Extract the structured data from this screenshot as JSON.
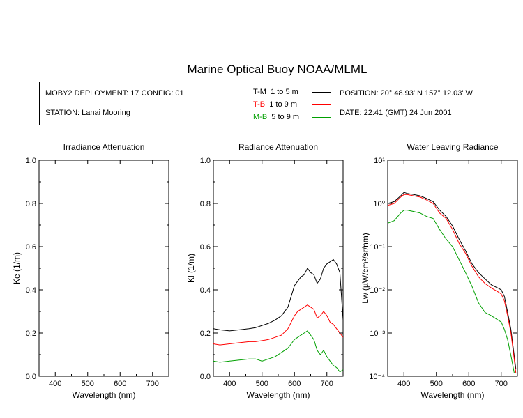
{
  "title": "Marine Optical Buoy NOAA/MLML",
  "info": {
    "deployment": "MOBY2 DEPLOYMENT: 17 CONFIG: 01",
    "station": "STATION: Lanai Mooring",
    "position": "POSITION: 20° 48.93' N   157° 12.03' W",
    "date": "DATE: 22:41 (GMT) 24 Jun 2001"
  },
  "legend": [
    {
      "code": "T-M",
      "range": "1 to 5  m",
      "color": "#000000"
    },
    {
      "code": "T-B",
      "range": "1 to 9  m",
      "color": "#ff0000"
    },
    {
      "code": "M-B",
      "range": "5 to 9  m",
      "color": "#00a000"
    }
  ],
  "chart_data": [
    {
      "type": "line",
      "title": "Irradiance Attenuation",
      "xlabel": "Wavelength (nm)",
      "ylabel": "Ke  (1/m)",
      "xlim": [
        350,
        750
      ],
      "ylim": [
        0,
        1
      ],
      "xticks": [
        400,
        500,
        600,
        700
      ],
      "yticks": [
        0.0,
        0.2,
        0.4,
        0.6,
        0.8,
        1.0
      ],
      "ytick_labels": [
        "0.0",
        "0.2",
        "0.4",
        "0.6",
        "0.8",
        "1.0"
      ],
      "series": []
    },
    {
      "type": "line",
      "title": "Radiance Attenuation",
      "xlabel": "Wavelength (nm)",
      "ylabel": "Kl  (1/m)",
      "xlim": [
        350,
        750
      ],
      "ylim": [
        0,
        1
      ],
      "xticks": [
        400,
        500,
        600,
        700
      ],
      "yticks": [
        0.0,
        0.2,
        0.4,
        0.6,
        0.8,
        1.0
      ],
      "ytick_labels": [
        "0.0",
        "0.2",
        "0.4",
        "0.6",
        "0.8",
        "1.0"
      ],
      "series": [
        {
          "color": "#000000",
          "x": [
            350,
            370,
            400,
            430,
            460,
            480,
            500,
            520,
            540,
            560,
            580,
            590,
            600,
            610,
            620,
            630,
            640,
            650,
            660,
            670,
            680,
            690,
            700,
            710,
            720,
            730,
            740,
            750
          ],
          "y": [
            0.22,
            0.215,
            0.21,
            0.215,
            0.22,
            0.225,
            0.235,
            0.245,
            0.26,
            0.28,
            0.32,
            0.37,
            0.42,
            0.44,
            0.46,
            0.47,
            0.5,
            0.48,
            0.47,
            0.43,
            0.45,
            0.5,
            0.52,
            0.53,
            0.54,
            0.52,
            0.48,
            0.26
          ]
        },
        {
          "color": "#ff0000",
          "x": [
            350,
            370,
            400,
            430,
            460,
            480,
            500,
            520,
            540,
            560,
            580,
            590,
            600,
            610,
            620,
            630,
            640,
            650,
            660,
            670,
            680,
            690,
            700,
            710,
            720,
            730,
            740,
            750
          ],
          "y": [
            0.15,
            0.145,
            0.15,
            0.155,
            0.16,
            0.16,
            0.165,
            0.17,
            0.18,
            0.19,
            0.22,
            0.25,
            0.28,
            0.3,
            0.31,
            0.32,
            0.33,
            0.32,
            0.31,
            0.27,
            0.28,
            0.3,
            0.28,
            0.25,
            0.24,
            0.22,
            0.2,
            0.18
          ]
        },
        {
          "color": "#00a000",
          "x": [
            350,
            370,
            400,
            430,
            460,
            480,
            500,
            520,
            540,
            560,
            580,
            590,
            600,
            610,
            620,
            630,
            640,
            650,
            660,
            670,
            680,
            690,
            700,
            710,
            720,
            730,
            740,
            750
          ],
          "y": [
            0.07,
            0.065,
            0.07,
            0.075,
            0.08,
            0.08,
            0.07,
            0.08,
            0.09,
            0.11,
            0.13,
            0.15,
            0.17,
            0.18,
            0.19,
            0.2,
            0.21,
            0.19,
            0.17,
            0.12,
            0.1,
            0.12,
            0.09,
            0.07,
            0.05,
            0.04,
            0.02,
            0.03
          ]
        }
      ]
    },
    {
      "type": "line",
      "title": "Water Leaving Radiance",
      "xlabel": "Wavelength (nm)",
      "ylabel": "Lw  (µW/cm²/sr/nm)",
      "yscale": "log",
      "xlim": [
        350,
        750
      ],
      "ylim": [
        0.0001,
        10
      ],
      "xticks": [
        400,
        500,
        600,
        700
      ],
      "yticks": [
        0.0001,
        0.001,
        0.01,
        0.1,
        1,
        10
      ],
      "ytick_labels": [
        "10⁻⁴",
        "10⁻³",
        "10⁻²",
        "10⁻¹",
        "10⁰",
        "10¹"
      ],
      "series": [
        {
          "color": "#000000",
          "x": [
            350,
            370,
            390,
            400,
            410,
            430,
            450,
            470,
            490,
            510,
            530,
            550,
            570,
            590,
            610,
            630,
            650,
            670,
            690,
            700,
            710,
            720,
            730,
            740,
            745
          ],
          "y": [
            1.0,
            1.1,
            1.5,
            1.8,
            1.7,
            1.6,
            1.5,
            1.3,
            1.1,
            0.7,
            0.5,
            0.3,
            0.15,
            0.08,
            0.04,
            0.025,
            0.018,
            0.013,
            0.011,
            0.01,
            0.007,
            0.003,
            0.0012,
            0.0003,
            0.00015
          ]
        },
        {
          "color": "#ff0000",
          "x": [
            350,
            370,
            390,
            400,
            410,
            430,
            450,
            470,
            490,
            510,
            530,
            550,
            570,
            590,
            610,
            630,
            650,
            670,
            690,
            700,
            710,
            720,
            730,
            740,
            745
          ],
          "y": [
            0.9,
            1.0,
            1.4,
            1.6,
            1.6,
            1.5,
            1.4,
            1.2,
            1.0,
            0.6,
            0.45,
            0.25,
            0.12,
            0.07,
            0.035,
            0.02,
            0.014,
            0.011,
            0.009,
            0.008,
            0.0055,
            0.0025,
            0.001,
            0.00025,
            0.00012
          ]
        },
        {
          "color": "#00a000",
          "x": [
            350,
            370,
            390,
            400,
            410,
            430,
            450,
            470,
            490,
            510,
            530,
            550,
            570,
            590,
            610,
            630,
            650,
            670,
            690,
            700,
            710,
            720,
            730,
            740
          ],
          "y": [
            0.35,
            0.4,
            0.6,
            0.7,
            0.7,
            0.65,
            0.6,
            0.5,
            0.45,
            0.25,
            0.15,
            0.1,
            0.05,
            0.025,
            0.012,
            0.005,
            0.003,
            0.0025,
            0.002,
            0.0018,
            0.0012,
            0.0007,
            0.0003,
            0.00012
          ]
        }
      ]
    }
  ]
}
